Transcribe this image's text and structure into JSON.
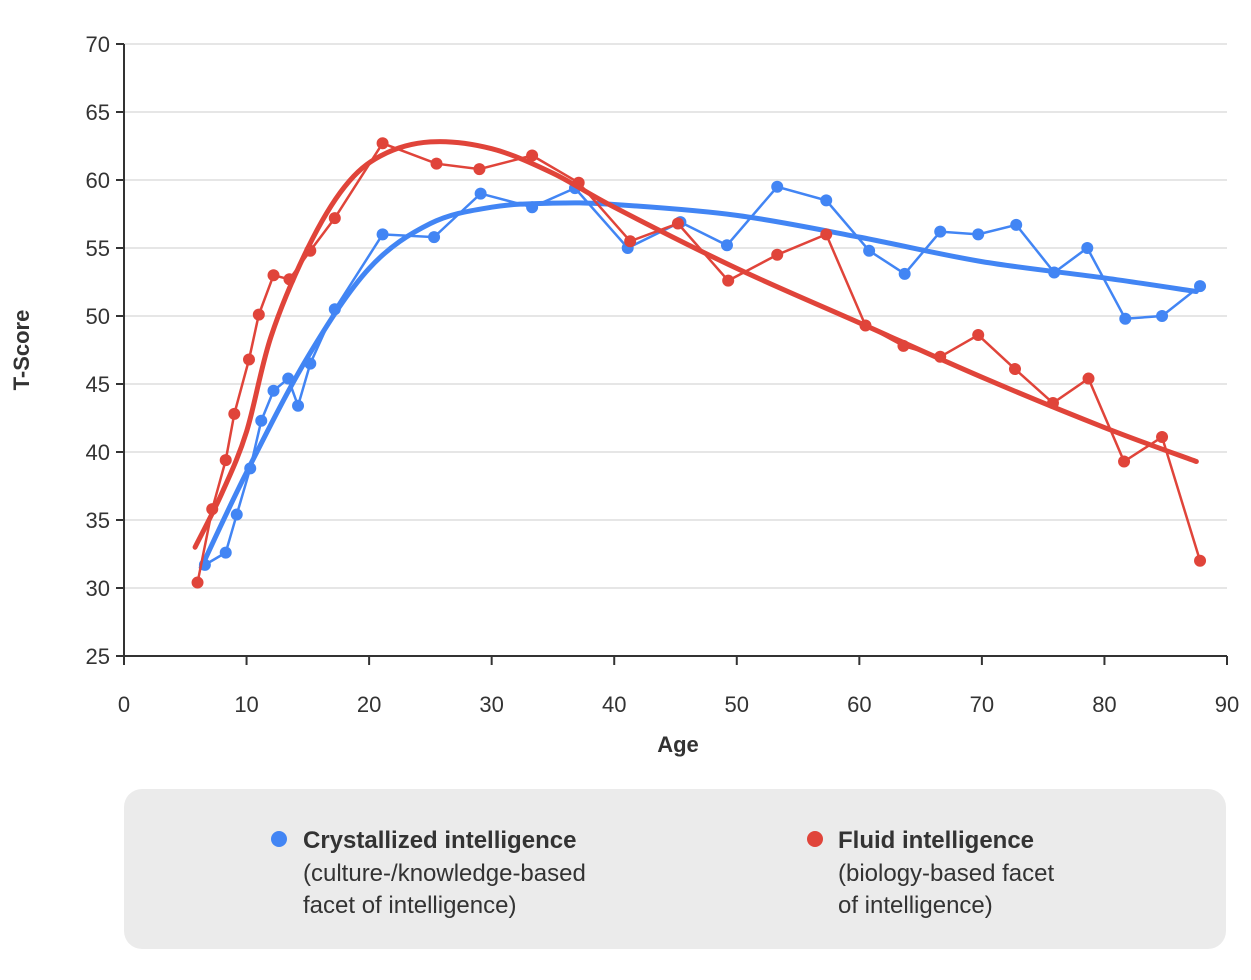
{
  "chart_data": {
    "type": "line",
    "xlabel": "Age",
    "ylabel": "T-Score",
    "xlim": [
      0,
      90
    ],
    "ylim": [
      25,
      70
    ],
    "xticks": [
      0,
      10,
      20,
      30,
      40,
      50,
      60,
      70,
      80,
      90
    ],
    "yticks": [
      25,
      30,
      35,
      40,
      45,
      50,
      55,
      60,
      65,
      70
    ],
    "grid": "horizontal",
    "legend_placement": "bottom",
    "series": [
      {
        "name": "Crystallized intelligence",
        "description_lines": [
          "(culture-/knowledge-based",
          "facet of intelligence)"
        ],
        "color": "#4285f4",
        "points": [
          [
            6.6,
            31.7
          ],
          [
            8.3,
            32.6
          ],
          [
            9.2,
            35.4
          ],
          [
            10.3,
            38.8
          ],
          [
            11.2,
            42.3
          ],
          [
            12.2,
            44.5
          ],
          [
            13.4,
            45.4
          ],
          [
            14.2,
            43.4
          ],
          [
            15.2,
            46.5
          ],
          [
            17.2,
            50.5
          ],
          [
            21.1,
            56.0
          ],
          [
            25.3,
            55.8
          ],
          [
            29.1,
            59.0
          ],
          [
            33.3,
            58.0
          ],
          [
            36.8,
            59.4
          ],
          [
            41.1,
            55.0
          ],
          [
            45.4,
            56.9
          ],
          [
            49.2,
            55.2
          ],
          [
            53.3,
            59.5
          ],
          [
            57.3,
            58.5
          ],
          [
            60.8,
            54.8
          ],
          [
            63.7,
            53.1
          ],
          [
            66.6,
            56.2
          ],
          [
            69.7,
            56.0
          ],
          [
            72.8,
            56.7
          ],
          [
            75.9,
            53.2
          ],
          [
            78.6,
            55.0
          ],
          [
            81.7,
            49.8
          ],
          [
            84.7,
            50.0
          ],
          [
            87.8,
            52.2
          ]
        ],
        "trend": [
          [
            6.3,
            31.5
          ],
          [
            10,
            38.5
          ],
          [
            15,
            47
          ],
          [
            20,
            53.5
          ],
          [
            25,
            56.8
          ],
          [
            30,
            58
          ],
          [
            35,
            58.3
          ],
          [
            40,
            58.2
          ],
          [
            50,
            57.4
          ],
          [
            60,
            55.8
          ],
          [
            70,
            54
          ],
          [
            80,
            52.8
          ],
          [
            87.5,
            51.8
          ]
        ]
      },
      {
        "name": "Fluid intelligence",
        "description_lines": [
          "(biology-based facet",
          "of intelligence)"
        ],
        "color": "#e0443a",
        "points": [
          [
            6.0,
            30.4
          ],
          [
            7.2,
            35.8
          ],
          [
            8.3,
            39.4
          ],
          [
            9.0,
            42.8
          ],
          [
            10.2,
            46.8
          ],
          [
            11.0,
            50.1
          ],
          [
            12.2,
            53.0
          ],
          [
            13.5,
            52.7
          ],
          [
            15.2,
            54.8
          ],
          [
            17.2,
            57.2
          ],
          [
            21.1,
            62.7
          ],
          [
            25.5,
            61.2
          ],
          [
            29.0,
            60.8
          ],
          [
            33.3,
            61.8
          ],
          [
            37.1,
            59.8
          ],
          [
            41.3,
            55.5
          ],
          [
            45.2,
            56.8
          ],
          [
            49.3,
            52.6
          ],
          [
            53.3,
            54.5
          ],
          [
            57.3,
            56.0
          ],
          [
            60.5,
            49.3
          ],
          [
            63.6,
            47.8
          ],
          [
            66.6,
            47.0
          ],
          [
            69.7,
            48.6
          ],
          [
            72.7,
            46.1
          ],
          [
            75.8,
            43.6
          ],
          [
            78.7,
            45.4
          ],
          [
            81.6,
            39.3
          ],
          [
            84.7,
            41.1
          ],
          [
            87.8,
            32.0
          ]
        ],
        "trend": [
          [
            5.8,
            33
          ],
          [
            8,
            37
          ],
          [
            10,
            41.5
          ],
          [
            12,
            48.5
          ],
          [
            15,
            55
          ],
          [
            18,
            59.5
          ],
          [
            21,
            61.8
          ],
          [
            25,
            62.8
          ],
          [
            30,
            62.3
          ],
          [
            35,
            60.5
          ],
          [
            40,
            58
          ],
          [
            50,
            53.5
          ],
          [
            60,
            49.5
          ],
          [
            70,
            45.5
          ],
          [
            80,
            41.8
          ],
          [
            87.5,
            39.3
          ]
        ]
      }
    ]
  },
  "legend_bg": "#ebebeb"
}
